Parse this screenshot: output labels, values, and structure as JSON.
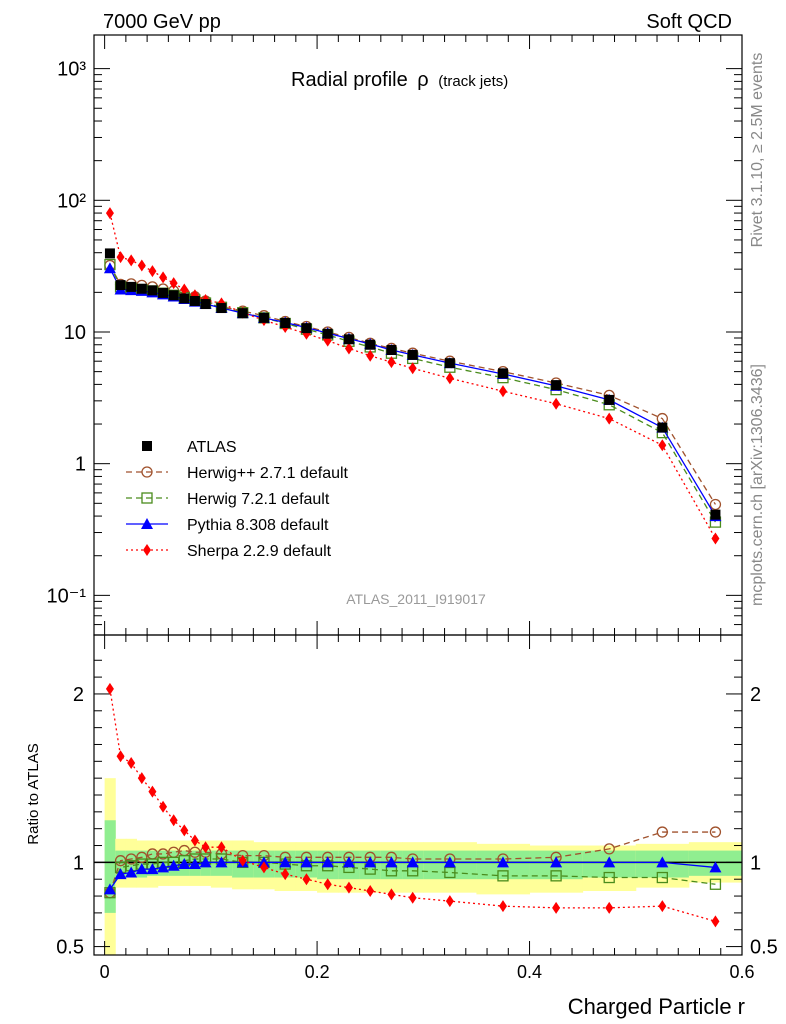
{
  "header": {
    "left": "7000 GeV pp",
    "right": "Soft QCD"
  },
  "side_labels": {
    "rivet": "Rivet 3.1.10, ≥ 2.5M events",
    "mcplots": "mcplots.cern.ch [arXiv:1306.3436]"
  },
  "chart_data": [
    {
      "type": "line",
      "title": "Radial profile",
      "title_symbol": "ρ",
      "title_suffix": "(track jets)",
      "watermark": "ATLAS_2011_I919017",
      "yscale": "log",
      "xlim": [
        -0.01,
        0.6
      ],
      "ylim": [
        0.05,
        1800
      ],
      "y_tick_labels": [
        "10⁻¹",
        "1",
        "10",
        "10²",
        "10³"
      ],
      "legend_position": "bottom-left",
      "x": [
        0.005,
        0.015,
        0.025,
        0.035,
        0.045,
        0.055,
        0.065,
        0.075,
        0.085,
        0.095,
        0.11,
        0.13,
        0.15,
        0.17,
        0.19,
        0.21,
        0.23,
        0.25,
        0.27,
        0.29,
        0.325,
        0.375,
        0.425,
        0.475,
        0.525,
        0.575
      ],
      "series": [
        {
          "name": "ATLAS",
          "color": "#000000",
          "marker": "square-filled",
          "line": "none",
          "values": [
            39.5,
            22.7,
            22.0,
            21.3,
            20.7,
            19.8,
            19.0,
            18.0,
            17.2,
            16.3,
            15.2,
            13.9,
            12.8,
            11.7,
            10.7,
            9.7,
            8.8,
            8.0,
            7.3,
            6.7,
            5.8,
            4.85,
            3.95,
            3.05,
            1.88,
            0.41
          ]
        },
        {
          "name": "Herwig++ 2.7.1 default",
          "color": "#a0522d",
          "marker": "circle-open",
          "line": "dashed",
          "values": [
            32.0,
            23.0,
            23.2,
            22.6,
            22.0,
            21.2,
            20.5,
            19.6,
            18.5,
            17.2,
            15.6,
            14.4,
            13.3,
            12.0,
            11.0,
            10.0,
            9.1,
            8.2,
            7.5,
            6.9,
            6.0,
            5.0,
            4.1,
            3.3,
            2.2,
            0.49
          ]
        },
        {
          "name": "Herwig 7.2.1 default",
          "color": "#4a8c1c",
          "marker": "square-open",
          "line": "dashed",
          "values": [
            32.5,
            22.0,
            21.5,
            21.0,
            20.5,
            19.7,
            19.0,
            18.3,
            17.5,
            16.6,
            15.4,
            14.0,
            12.8,
            11.6,
            10.5,
            9.5,
            8.5,
            7.7,
            6.9,
            6.3,
            5.4,
            4.5,
            3.65,
            2.8,
            1.72,
            0.36
          ]
        },
        {
          "name": "Pythia 8.308 default",
          "color": "#0000ff",
          "marker": "triangle-filled",
          "line": "solid",
          "values": [
            30.5,
            21.0,
            20.8,
            20.5,
            20.0,
            19.3,
            18.6,
            17.8,
            17.0,
            16.3,
            15.2,
            13.9,
            12.8,
            11.8,
            10.8,
            9.8,
            8.9,
            8.1,
            7.3,
            6.7,
            5.8,
            4.8,
            3.9,
            3.05,
            1.88,
            0.4
          ]
        },
        {
          "name": "Sherpa 2.2.9 default",
          "color": "#ff0000",
          "marker": "diamond-filled",
          "line": "dotted",
          "values": [
            80.0,
            37.0,
            35.0,
            32.0,
            29.0,
            26.0,
            23.5,
            21.0,
            19.0,
            17.5,
            16.5,
            14.0,
            12.3,
            10.9,
            9.7,
            8.6,
            7.5,
            6.6,
            5.9,
            5.3,
            4.45,
            3.55,
            2.85,
            2.2,
            1.38,
            0.27
          ]
        }
      ]
    },
    {
      "type": "line",
      "ylabel": "Ratio to ATLAS",
      "xlabel": "Charged Particle r",
      "xlim": [
        -0.01,
        0.6
      ],
      "ylim": [
        0.45,
        2.35
      ],
      "x_tick_labels": [
        "0",
        "0.2",
        "0.4",
        "0.6"
      ],
      "y_tick_labels": [
        "0.5",
        "1",
        "2"
      ],
      "x": [
        0.005,
        0.015,
        0.025,
        0.035,
        0.045,
        0.055,
        0.065,
        0.075,
        0.085,
        0.095,
        0.11,
        0.13,
        0.15,
        0.17,
        0.19,
        0.21,
        0.23,
        0.25,
        0.27,
        0.29,
        0.325,
        0.375,
        0.425,
        0.475,
        0.525,
        0.575
      ],
      "bands": {
        "stat_color": "#90ee90",
        "total_color": "#ffff99",
        "edges": [
          0.0,
          0.01,
          0.02,
          0.03,
          0.04,
          0.05,
          0.06,
          0.07,
          0.08,
          0.09,
          0.1,
          0.12,
          0.14,
          0.16,
          0.18,
          0.2,
          0.22,
          0.24,
          0.26,
          0.28,
          0.3,
          0.35,
          0.4,
          0.45,
          0.5,
          0.55,
          0.6
        ],
        "total_lo": [
          0.4,
          0.85,
          0.85,
          0.85,
          0.85,
          0.86,
          0.86,
          0.86,
          0.86,
          0.86,
          0.85,
          0.84,
          0.84,
          0.83,
          0.83,
          0.82,
          0.82,
          0.82,
          0.82,
          0.82,
          0.82,
          0.81,
          0.82,
          0.83,
          0.85,
          0.88
        ],
        "total_hi": [
          1.5,
          1.14,
          1.14,
          1.13,
          1.13,
          1.13,
          1.13,
          1.13,
          1.13,
          1.13,
          1.13,
          1.13,
          1.12,
          1.12,
          1.12,
          1.12,
          1.12,
          1.12,
          1.12,
          1.12,
          1.12,
          1.11,
          1.1,
          1.1,
          1.11,
          1.12
        ],
        "stat_lo": [
          0.7,
          0.91,
          0.91,
          0.91,
          0.92,
          0.92,
          0.92,
          0.92,
          0.92,
          0.92,
          0.92,
          0.91,
          0.91,
          0.91,
          0.91,
          0.9,
          0.9,
          0.9,
          0.9,
          0.9,
          0.9,
          0.9,
          0.9,
          0.91,
          0.91,
          0.92
        ],
        "stat_hi": [
          1.25,
          1.07,
          1.07,
          1.07,
          1.07,
          1.07,
          1.07,
          1.07,
          1.07,
          1.07,
          1.07,
          1.07,
          1.07,
          1.07,
          1.07,
          1.07,
          1.07,
          1.07,
          1.07,
          1.07,
          1.07,
          1.07,
          1.07,
          1.07,
          1.07,
          1.07
        ]
      },
      "series": [
        {
          "name": "Herwig++ 2.7.1 default",
          "color": "#a0522d",
          "marker": "circle-open",
          "line": "dashed",
          "values": [
            0.82,
            1.01,
            1.02,
            1.03,
            1.05,
            1.05,
            1.06,
            1.07,
            1.06,
            1.06,
            1.05,
            1.04,
            1.04,
            1.03,
            1.03,
            1.03,
            1.03,
            1.03,
            1.03,
            1.02,
            1.02,
            1.02,
            1.03,
            1.08,
            1.18,
            1.18
          ]
        },
        {
          "name": "Herwig 7.2.1 default",
          "color": "#4a8c1c",
          "marker": "square-open",
          "line": "dashed",
          "values": [
            0.82,
            0.97,
            0.98,
            0.99,
            0.99,
            1.0,
            1.0,
            1.01,
            1.02,
            1.02,
            1.02,
            1.0,
            1.0,
            0.99,
            0.98,
            0.98,
            0.97,
            0.96,
            0.95,
            0.95,
            0.94,
            0.92,
            0.92,
            0.91,
            0.91,
            0.87
          ]
        },
        {
          "name": "Pythia 8.308 default",
          "color": "#0000ff",
          "marker": "triangle-filled",
          "line": "solid",
          "values": [
            0.84,
            0.93,
            0.94,
            0.96,
            0.96,
            0.97,
            0.98,
            0.99,
            0.99,
            1.0,
            1.0,
            1.0,
            1.0,
            1.0,
            1.0,
            1.0,
            1.0,
            1.0,
            1.0,
            1.0,
            1.0,
            1.0,
            1.0,
            1.0,
            1.0,
            0.97
          ]
        },
        {
          "name": "Sherpa 2.2.9 default",
          "color": "#ff0000",
          "marker": "diamond-filled",
          "line": "dotted",
          "values": [
            2.03,
            1.63,
            1.59,
            1.5,
            1.42,
            1.33,
            1.25,
            1.19,
            1.13,
            1.09,
            1.09,
            1.01,
            0.97,
            0.93,
            0.9,
            0.87,
            0.85,
            0.83,
            0.81,
            0.79,
            0.77,
            0.74,
            0.73,
            0.73,
            0.74,
            0.65
          ]
        }
      ]
    }
  ]
}
